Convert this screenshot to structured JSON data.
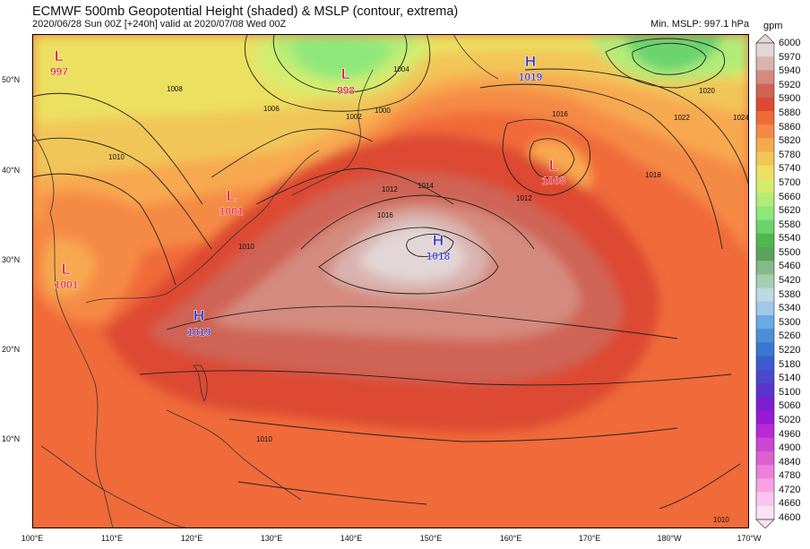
{
  "header": {
    "title": "ECMWF 500mb Geopotential Height (shaded) & MSLP (contour, extrema)",
    "subtitle": "2020/06/28 Sun 00Z [+240h] valid at 2020/07/08 Wed 00Z",
    "min_mslp": "Min. MSLP: 997.1 hPa"
  },
  "map": {
    "lat_labels": [
      "50°N",
      "40°N",
      "30°N",
      "20°N",
      "10°N"
    ],
    "lon_labels": [
      "100°E",
      "110°E",
      "120°E",
      "130°E",
      "140°E",
      "150°E",
      "160°E",
      "170°E",
      "180°W",
      "170°W"
    ],
    "lows": [
      {
        "letter": "L",
        "value": "997"
      },
      {
        "letter": "L",
        "value": "998"
      },
      {
        "letter": "L",
        "value": "1001"
      },
      {
        "letter": "L",
        "value": "1001"
      },
      {
        "letter": "L",
        "value": "1008"
      }
    ],
    "highs": [
      {
        "letter": "H",
        "value": "1019"
      },
      {
        "letter": "H",
        "value": "1018"
      },
      {
        "letter": "H",
        "value": "1019"
      }
    ],
    "contour_labels": [
      "1000",
      "1002",
      "1004",
      "1006",
      "1008",
      "1010",
      "1012",
      "1014",
      "1016",
      "1018",
      "1020",
      "1022",
      "1024"
    ]
  },
  "colorbar": {
    "unit": "gpm",
    "levels": [
      "6000",
      "5970",
      "5940",
      "5920",
      "5900",
      "5880",
      "5860",
      "5820",
      "5780",
      "5740",
      "5700",
      "5660",
      "5620",
      "5580",
      "5540",
      "5500",
      "5460",
      "5420",
      "5380",
      "5340",
      "5300",
      "5260",
      "5220",
      "5180",
      "5140",
      "5100",
      "5060",
      "5020",
      "4960",
      "4900",
      "4840",
      "4780",
      "4720",
      "4660",
      "4600"
    ],
    "colors": [
      "#e3d6d6",
      "#d9b3ae",
      "#d48a7e",
      "#cf6454",
      "#dd4a33",
      "#f06a3a",
      "#f58a45",
      "#f7a950",
      "#f1c659",
      "#ebe061",
      "#d4ec6e",
      "#b2ec78",
      "#8fe77a",
      "#6ad46e",
      "#4fb84d",
      "#5aa35a",
      "#84b98a",
      "#a6ccb2",
      "#bcd9e4",
      "#9fc8ea",
      "#6aa9e1",
      "#4a8fd8",
      "#3b77cf",
      "#3b5ccc",
      "#4a49cc",
      "#5a34cc",
      "#7c1fd2",
      "#9919d5",
      "#b82ad6",
      "#cc47d2",
      "#dd5fcf",
      "#ef80da",
      "#f7a2e4",
      "#f9c5ee",
      "#fbe1f6"
    ],
    "highlight": {
      "low": "#e8102b",
      "high": "#1c2ad2"
    }
  }
}
